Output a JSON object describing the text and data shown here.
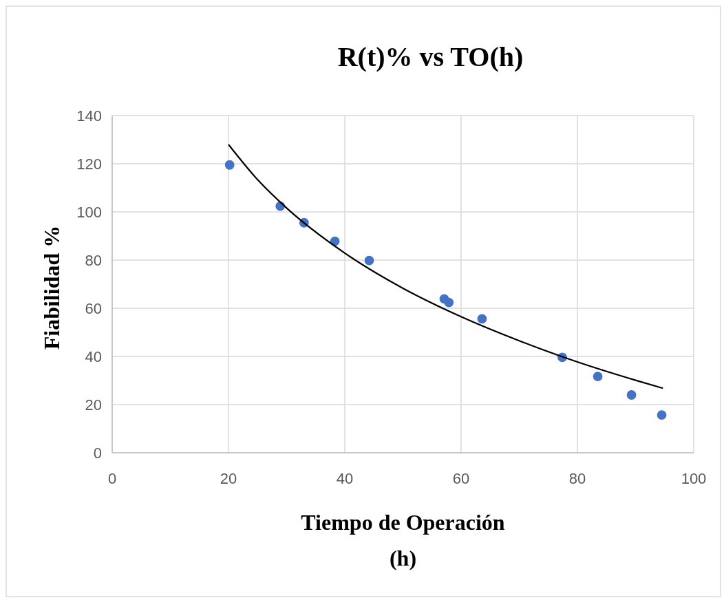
{
  "chart_data": {
    "type": "scatter",
    "title": "R(t)% vs TO(h)",
    "xlabel": "Tiempo de Operación\n(h)",
    "ylabel": "Fiabilidad  %",
    "xlim": [
      0,
      100
    ],
    "xticks": [
      0,
      20,
      40,
      60,
      80,
      100
    ],
    "ylim": [
      0,
      140
    ],
    "yticks": [
      0,
      20,
      40,
      60,
      80,
      100,
      120,
      140
    ],
    "grid": true,
    "marker": "circle",
    "series": [
      {
        "color": "#4472c4",
        "x": [
          20.2,
          28.9,
          33.0,
          38.3,
          44.2,
          57.1,
          57.9,
          63.6,
          77.4,
          83.5,
          89.3,
          94.5
        ],
        "values": [
          119.5,
          102.4,
          95.5,
          87.8,
          79.8,
          63.9,
          62.4,
          55.6,
          39.6,
          31.7,
          24.0,
          15.7
        ]
      },
      {
        "type": "line",
        "color": "#000000",
        "marker": "none",
        "line_style": "solid",
        "x": [
          20,
          25,
          30,
          40,
          50,
          60,
          70,
          80,
          90,
          94.7
        ],
        "values": [
          128,
          113.4,
          101.6,
          82.9,
          68.3,
          56.5,
          46.5,
          37.7,
          30.1,
          26.8
        ]
      }
    ]
  }
}
